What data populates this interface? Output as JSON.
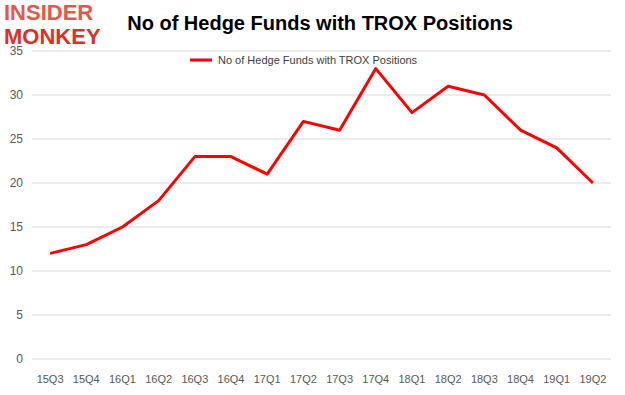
{
  "chart_data": {
    "type": "line",
    "title": "No of Hedge Funds with TROX Positions",
    "annotations": [
      "INSIDER",
      "MONKEY"
    ],
    "categories": [
      "15Q3",
      "15Q4",
      "16Q1",
      "16Q2",
      "16Q3",
      "16Q4",
      "17Q1",
      "17Q2",
      "17Q3",
      "17Q4",
      "18Q1",
      "18Q2",
      "18Q3",
      "18Q4",
      "19Q1",
      "19Q2"
    ],
    "series": [
      {
        "name": "No of Hedge Funds with TROX Positions",
        "color": "#ff0000",
        "values": [
          12,
          13,
          15,
          18,
          23,
          23,
          21,
          27,
          26,
          33,
          28,
          31,
          30,
          26,
          24,
          20
        ]
      }
    ],
    "ylim": [
      0,
      35
    ],
    "yticks": [
      0,
      5,
      10,
      15,
      20,
      25,
      30,
      35
    ],
    "grid": true,
    "legend": "top"
  }
}
